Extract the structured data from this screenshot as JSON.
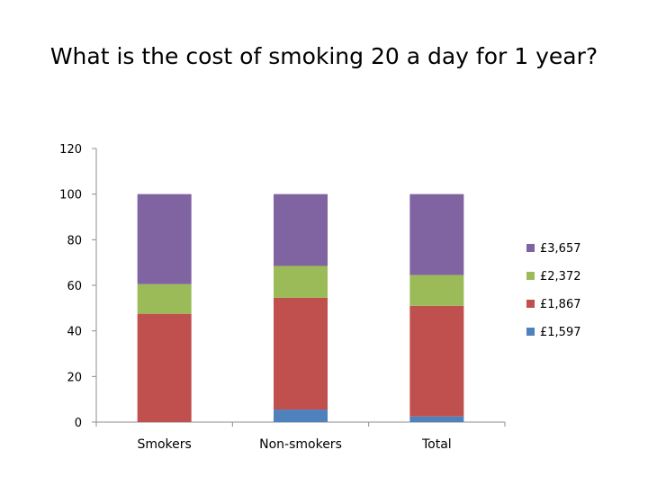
{
  "title": "What is the cost of smoking 20 a day for 1 year?",
  "chart_data": {
    "type": "bar",
    "stacked": true,
    "categories": [
      "Smokers",
      "Non-smokers",
      "Total"
    ],
    "series": [
      {
        "name": "£1,597",
        "color": "#4f81bd",
        "values": [
          0,
          5.5,
          2.5
        ]
      },
      {
        "name": "£1,867",
        "color": "#c0504d",
        "values": [
          47.5,
          49,
          48.5
        ]
      },
      {
        "name": "£2,372",
        "color": "#9bbb59",
        "values": [
          13,
          14,
          13.5
        ]
      },
      {
        "name": "£3,657",
        "color": "#8064a2",
        "values": [
          39.5,
          31.5,
          35.5
        ]
      }
    ],
    "ylim": [
      0,
      120
    ],
    "yticks": [
      0,
      20,
      40,
      60,
      80,
      100,
      120
    ],
    "legend": "right"
  }
}
